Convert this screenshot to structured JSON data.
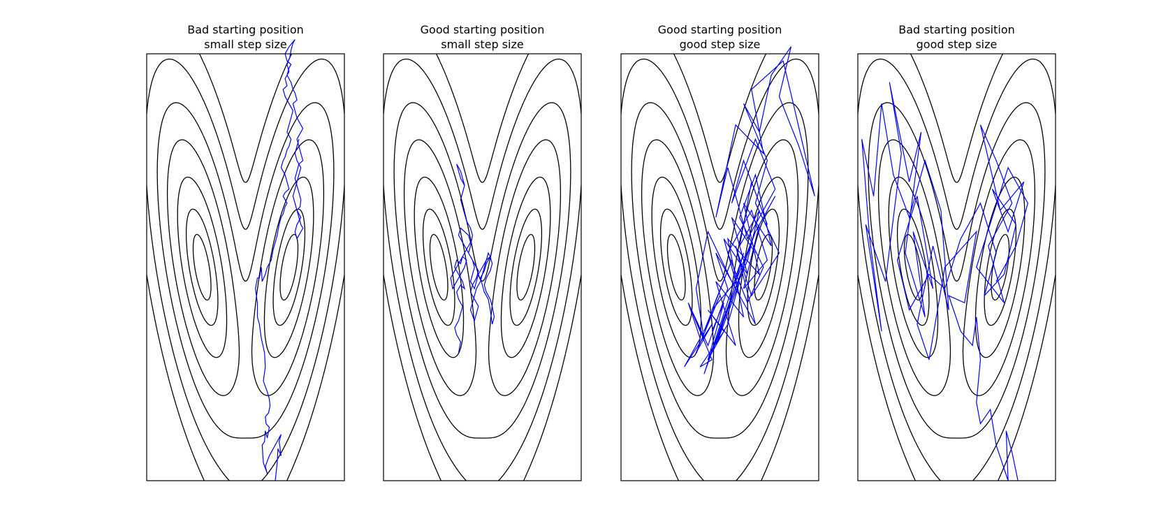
{
  "chart_data": [
    {
      "type": "line",
      "title_line1": "Bad starting position",
      "title_line2": "small step size",
      "series_color": "#0000ff",
      "contour_color": "#000000",
      "xlim": [
        -2.5,
        2.5
      ],
      "ylim": [
        -3.0,
        3.0
      ],
      "contour_levels": [
        0.08,
        0.25,
        0.6,
        1.2,
        2.0,
        3.2,
        4.8
      ],
      "chain": {
        "x": [
          0.75,
          0.8,
          0.82,
          0.9,
          0.85,
          0.9,
          0.6,
          0.5,
          0.55,
          0.45,
          0.42,
          0.48,
          0.5,
          0.55,
          0.6,
          0.52,
          0.5,
          0.58,
          0.62,
          0.6,
          0.55,
          0.45,
          0.5,
          0.48,
          0.4,
          0.35,
          0.3,
          0.3,
          0.25,
          0.3,
          0.35,
          0.4,
          0.42,
          0.5,
          0.55,
          0.65,
          0.7,
          0.75,
          0.8,
          0.85,
          0.9,
          0.95,
          1.0,
          1.05,
          0.95,
          1.0,
          1.1,
          1.05,
          1.0,
          0.9,
          0.95,
          1.0,
          1.05,
          1.1,
          1.15,
          1.05,
          1.1,
          1.15,
          1.2,
          1.1,
          1.0,
          0.95,
          1.05,
          1.0,
          1.1,
          1.05,
          1.12,
          1.15,
          1.2,
          1.25,
          1.1,
          1.0,
          1.05,
          1.15,
          1.1,
          1.05,
          1.15,
          1.2,
          1.25,
          1.3,
          1.2,
          1.25,
          1.3,
          1.4,
          1.45,
          1.35,
          1.3,
          1.35,
          1.4,
          1.45,
          1.35,
          1.3,
          1.25,
          1.3,
          1.35,
          1.4,
          1.38,
          1.3,
          1.35,
          1.4,
          1.45,
          1.35,
          1.3,
          1.25,
          1.3,
          1.4,
          1.3,
          1.25,
          1.2,
          1.25,
          1.3,
          1.35,
          1.4,
          1.3,
          1.25,
          1.3,
          1.35
        ],
        "y": [
          -3.0,
          -2.75,
          -2.55,
          -2.65,
          -2.45,
          -2.35,
          -2.65,
          -2.8,
          -2.9,
          -2.75,
          -2.5,
          -2.45,
          -2.3,
          -2.4,
          -2.25,
          -2.2,
          -2.1,
          -2.05,
          -1.95,
          -1.85,
          -1.75,
          -1.6,
          -1.4,
          -1.2,
          -1.0,
          -0.8,
          -0.7,
          -0.5,
          -0.3,
          -0.15,
          -0.15,
          0.0,
          -0.2,
          -0.1,
          0.0,
          0.1,
          0.25,
          0.35,
          0.45,
          0.6,
          0.7,
          0.75,
          0.85,
          0.9,
          1.0,
          1.05,
          1.1,
          1.2,
          1.3,
          1.4,
          1.5,
          1.55,
          1.65,
          1.7,
          1.8,
          1.9,
          2.0,
          2.1,
          2.2,
          2.3,
          2.4,
          2.5,
          2.55,
          2.65,
          2.75,
          2.85,
          2.95,
          3.05,
          3.15,
          3.2,
          3.1,
          3.0,
          2.9,
          2.85,
          2.8,
          2.7,
          2.6,
          2.5,
          2.45,
          2.35,
          2.3,
          2.2,
          2.1,
          2.0,
          1.95,
          1.85,
          1.8,
          1.7,
          1.6,
          1.5,
          1.45,
          1.35,
          1.25,
          1.15,
          1.05,
          0.95,
          0.85,
          0.8,
          0.7,
          0.6,
          0.55,
          0.45,
          0.4,
          0.5,
          0.6,
          0.7,
          0.8,
          0.9,
          1.0,
          1.1,
          1.2,
          1.3,
          1.4,
          1.5,
          1.6,
          1.7,
          1.8
        ]
      }
    },
    {
      "type": "line",
      "title_line1": "Good starting position",
      "title_line2": "small step size",
      "series_color": "#0000ff",
      "contour_color": "#000000",
      "xlim": [
        -2.5,
        2.5
      ],
      "ylim": [
        -3.0,
        3.0
      ],
      "contour_levels": [
        0.08,
        0.25,
        0.6,
        1.2,
        2.0,
        3.2,
        4.8
      ],
      "chain": {
        "x": [
          -0.6,
          -0.55,
          -0.65,
          -0.7,
          -0.6,
          -0.55,
          -0.5,
          -0.6,
          -0.65,
          -0.55,
          -0.45,
          -0.5,
          -0.6,
          -0.7,
          -0.65,
          -0.55,
          -0.5,
          -0.4,
          -0.45,
          -0.55,
          -0.65,
          -0.75,
          -0.8,
          -0.7,
          -0.6,
          -0.5,
          -0.4,
          -0.3,
          -0.35,
          -0.45,
          -0.55,
          -0.6,
          -0.5,
          -0.4,
          -0.3,
          -0.2,
          -0.1,
          -0.15,
          -0.25,
          -0.3,
          -0.2,
          -0.1,
          -0.15,
          -0.2,
          -0.3,
          -0.25,
          -0.2,
          -0.15,
          -0.05,
          0.0,
          0.05,
          0.1,
          0.2,
          0.25,
          0.2,
          0.1,
          0.05,
          0.1,
          0.2,
          0.25,
          0.3,
          0.25,
          0.2,
          0.15,
          0.05,
          0.0,
          -0.05,
          0.05,
          0.1,
          0.2,
          0.15,
          0.1,
          0.0,
          -0.1,
          -0.15,
          -0.2,
          -0.3,
          -0.25,
          -0.2,
          -0.25,
          -0.35,
          -0.3,
          -0.25,
          -0.3,
          -0.4,
          -0.45,
          -0.5,
          -0.55,
          -0.5,
          -0.45,
          -0.55,
          -0.6,
          -0.65,
          -0.55,
          -0.5,
          -0.45
        ],
        "y": [
          -1.2,
          -1.05,
          -0.95,
          -0.85,
          -0.75,
          -0.65,
          -0.55,
          -0.45,
          -0.35,
          -0.25,
          -0.3,
          -0.2,
          -0.1,
          0.0,
          0.1,
          0.05,
          0.15,
          0.1,
          0.0,
          -0.1,
          -0.2,
          -0.3,
          -0.15,
          -0.05,
          0.05,
          0.15,
          0.25,
          0.35,
          0.45,
          0.5,
          0.55,
          0.45,
          0.35,
          0.25,
          0.15,
          0.05,
          -0.05,
          -0.15,
          -0.25,
          -0.35,
          -0.45,
          -0.55,
          -0.65,
          -0.75,
          -0.6,
          -0.5,
          -0.4,
          -0.3,
          -0.2,
          -0.1,
          0.0,
          0.1,
          0.15,
          0.05,
          -0.05,
          -0.15,
          -0.25,
          -0.35,
          -0.45,
          -0.55,
          -0.7,
          -0.8,
          -0.6,
          -0.45,
          -0.35,
          -0.25,
          -0.15,
          -0.05,
          0.05,
          0.15,
          0.2,
          0.1,
          0.0,
          -0.1,
          -0.2,
          -0.3,
          -0.2,
          -0.1,
          0.0,
          0.1,
          0.2,
          0.3,
          0.45,
          0.55,
          0.65,
          0.75,
          0.85,
          0.95,
          1.05,
          1.15,
          1.25,
          1.35,
          1.45,
          1.35,
          1.25,
          1.15
        ]
      }
    },
    {
      "type": "line",
      "title_line1": "Good starting position",
      "title_line2": "good step size",
      "series_color": "#0000ff",
      "contour_color": "#000000",
      "xlim": [
        -2.5,
        2.5
      ],
      "ylim": [
        -3.0,
        3.0
      ],
      "contour_levels": [
        0.08,
        0.25,
        0.6,
        1.2,
        2.0,
        3.2,
        4.8
      ],
      "chain": {
        "x": [
          -0.2,
          0.1,
          -0.3,
          0.2,
          0.5,
          -0.1,
          0.3,
          -0.4,
          0.6,
          0.2,
          0.9,
          0.4,
          -0.2,
          0.1,
          0.7,
          1.0,
          0.5,
          0.8,
          1.2,
          0.6,
          0.3,
          0.9,
          1.4,
          0.7,
          0.2,
          -0.1,
          0.4,
          1.1,
          0.8,
          1.6,
          1.9,
          2.4,
          2.0,
          1.5,
          1.8,
          1.3,
          1.0,
          0.6,
          1.2,
          0.9,
          1.5,
          0.8,
          0.4,
          0.9,
          0.3,
          -0.3,
          -0.6,
          -0.4,
          -0.8,
          -0.2,
          -0.5,
          0.1,
          -0.3,
          0.4,
          -0.1,
          0.6,
          0.2,
          1.0,
          0.6,
          1.3,
          0.9,
          0.5,
          1.1,
          0.7,
          0.2,
          0.8,
          1.2,
          0.6,
          1.0,
          1.4,
          0.9,
          0.4,
          -0.2,
          0.3,
          -0.4,
          0.0,
          -0.6,
          -0.2,
          -0.9,
          -0.5,
          -0.8,
          -0.3,
          0.2,
          -0.1,
          0.5,
          0.1,
          0.7,
          0.3,
          0.9
        ],
        "y": [
          -0.9,
          -0.5,
          -1.3,
          -0.8,
          -0.2,
          -1.1,
          -0.4,
          -1.5,
          0.2,
          -0.6,
          0.5,
          -0.3,
          -1.2,
          -0.7,
          0.1,
          0.8,
          0.3,
          1.2,
          0.6,
          1.5,
          0.9,
          1.8,
          1.1,
          0.4,
          1.4,
          0.7,
          2.0,
          1.6,
          2.5,
          2.9,
          2.2,
          1.0,
          1.7,
          2.4,
          3.1,
          2.7,
          1.9,
          2.3,
          1.5,
          0.9,
          0.2,
          -0.4,
          0.3,
          -0.8,
          -0.2,
          0.5,
          -0.3,
          -1.0,
          -0.5,
          -1.3,
          -1.4,
          -0.9,
          -0.6,
          -1.1,
          -0.2,
          -0.7,
          0.4,
          -0.1,
          0.9,
          0.3,
          1.3,
          0.7,
          0.0,
          -0.5,
          0.2,
          0.8,
          0.1,
          -0.3,
          0.6,
          1.0,
          0.5,
          -0.2,
          -0.6,
          0.1,
          -0.9,
          -0.4,
          -1.2,
          -0.8,
          -1.4,
          -1.0,
          -0.5,
          -1.1,
          -0.3,
          0.2,
          -0.4,
          0.4,
          -0.1,
          0.7,
          0.2
        ]
      }
    },
    {
      "type": "line",
      "title_line1": "Bad starting position",
      "title_line2": "good step size",
      "series_color": "#0000ff",
      "contour_color": "#000000",
      "xlim": [
        -2.5,
        2.5
      ],
      "ylim": [
        -3.0,
        3.0
      ],
      "contour_levels": [
        0.08,
        0.25,
        0.6,
        1.2,
        2.0,
        3.2,
        4.8
      ],
      "chain": {
        "x": [
          1.55,
          1.4,
          1.25,
          1.3,
          1.0,
          0.85,
          0.6,
          0.5,
          0.55,
          0.6,
          0.55,
          0.5,
          0.4,
          0.1,
          -0.2,
          0.2,
          0.5,
          -0.3,
          -0.7,
          -1.0,
          -0.6,
          -0.2,
          -0.4,
          -0.8,
          -1.2,
          -1.6,
          -1.9,
          -2.1,
          -2.4,
          -2.2,
          -1.9,
          -2.3,
          -1.8,
          -1.4,
          -1.7,
          -1.2,
          -0.9,
          -1.3,
          -0.8,
          -1.1,
          -0.6,
          -1.0,
          -1.5,
          -1.2,
          -0.7,
          -0.3,
          0.1,
          0.6,
          1.0,
          0.7,
          1.2,
          1.5,
          0.9,
          1.3,
          1.7,
          1.1,
          0.6,
          1.0,
          1.4,
          0.8,
          1.2,
          0.5,
          0.9,
          1.3,
          1.8,
          1.5,
          1.0
        ],
        "y": [
          -3.0,
          -2.6,
          -2.3,
          -3.0,
          -2.5,
          -2.0,
          -2.2,
          -1.9,
          -1.6,
          -1.3,
          -1.0,
          -0.7,
          -1.1,
          -0.9,
          -0.4,
          -0.5,
          0.5,
          0.0,
          -1.3,
          -0.8,
          0.3,
          -0.6,
          0.8,
          1.5,
          0.7,
          1.3,
          2.3,
          1.0,
          1.8,
          0.4,
          -0.9,
          0.6,
          -0.2,
          1.6,
          2.6,
          1.2,
          1.9,
          0.2,
          -0.7,
          0.5,
          -0.3,
          1.0,
          0.1,
          -0.6,
          -0.1,
          -0.3,
          0.4,
          0.9,
          0.2,
          -0.4,
          -0.1,
          0.6,
          1.1,
          0.5,
          1.2,
          0.8,
          2.0,
          1.5,
          0.9,
          0.3,
          -0.5,
          0.0,
          0.7,
          1.4,
          0.9,
          0.3,
          -0.2
        ]
      }
    }
  ]
}
